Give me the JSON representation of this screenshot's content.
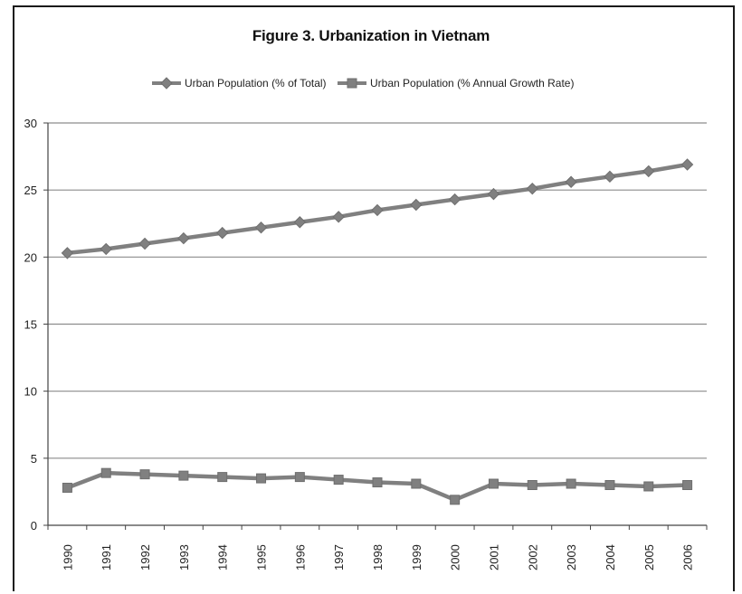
{
  "chart_data": {
    "type": "line",
    "title": "Figure 3. Urbanization in Vietnam",
    "xlabel": "",
    "ylabel": "",
    "ylim": [
      0,
      30
    ],
    "yticks": [
      "0",
      "5",
      "10",
      "15",
      "20",
      "25",
      "30"
    ],
    "grid": true,
    "legend_position": "top",
    "categories": [
      "1990",
      "1991",
      "1992",
      "1993",
      "1994",
      "1995",
      "1996",
      "1997",
      "1998",
      "1999",
      "2000",
      "2001",
      "2002",
      "2003",
      "2004",
      "2005",
      "2006"
    ],
    "series": [
      {
        "name": "Urban Population (% of Total)",
        "marker": "diamond",
        "color": "#808080",
        "values": [
          20.3,
          20.6,
          21.0,
          21.4,
          21.8,
          22.2,
          22.6,
          23.0,
          23.5,
          23.9,
          24.3,
          24.7,
          25.1,
          25.6,
          26.0,
          26.4,
          26.9
        ]
      },
      {
        "name": "Urban Population (% Annual Growth Rate)",
        "marker": "square",
        "color": "#808080",
        "values": [
          2.8,
          3.9,
          3.8,
          3.7,
          3.6,
          3.5,
          3.6,
          3.4,
          3.2,
          3.1,
          1.9,
          3.1,
          3.0,
          3.1,
          3.0,
          2.9,
          3.0
        ]
      }
    ]
  }
}
